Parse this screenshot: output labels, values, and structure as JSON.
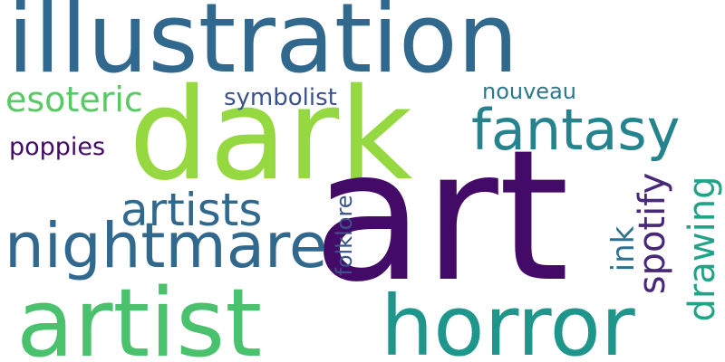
{
  "words": {
    "illustration": {
      "text": "illustration",
      "color": "#31688e"
    },
    "dark": {
      "text": "dark",
      "color": "#95d840"
    },
    "art": {
      "text": "art",
      "color": "#440a68"
    },
    "esoteric": {
      "text": "esoteric",
      "color": "#5ac864"
    },
    "symbolist": {
      "text": "symbolist",
      "color": "#3b528b"
    },
    "nouveau": {
      "text": "nouveau",
      "color": "#2a788e"
    },
    "fantasy": {
      "text": "fantasy",
      "color": "#25838e"
    },
    "poppies": {
      "text": "poppies",
      "color": "#440a68"
    },
    "artists": {
      "text": "artists",
      "color": "#31688e"
    },
    "nightmare": {
      "text": "nightmare",
      "color": "#31688e"
    },
    "artist": {
      "text": "artist",
      "color": "#4ac16d"
    },
    "horror": {
      "text": "horror",
      "color": "#1f968b"
    },
    "folklore": {
      "text": "folklore",
      "color": "#3b528b"
    },
    "ink": {
      "text": "ink",
      "color": "#2c728e"
    },
    "spotify": {
      "text": "spotify",
      "color": "#482878"
    },
    "drawing": {
      "text": "drawing",
      "color": "#20a386"
    }
  }
}
